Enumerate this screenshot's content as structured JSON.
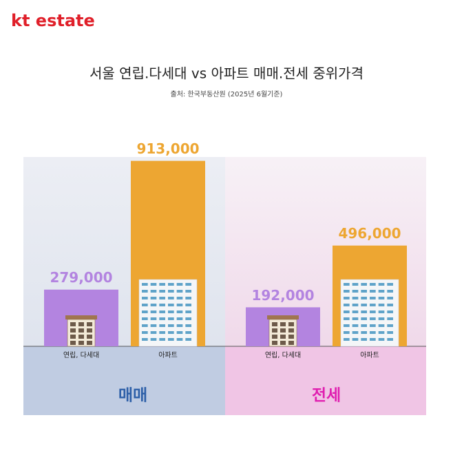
{
  "header": {
    "brand": "kt estate",
    "title": "서울 연립.다세대 vs 아파트 매매.전세 중위가격",
    "source": "출처: 한국부동산원 (2025년 6월기준)"
  },
  "chart_data": [
    {
      "type": "bar",
      "panel_label": "매매",
      "categories": [
        "연립, 다세대",
        "아파트"
      ],
      "values": [
        279000,
        913000
      ],
      "value_labels": [
        "279,000",
        "913,000"
      ],
      "colors": [
        "#b384e0",
        "#eda632"
      ],
      "ylim": [
        0,
        1000000
      ]
    },
    {
      "type": "bar",
      "panel_label": "전세",
      "categories": [
        "연립, 다세대",
        "아파트"
      ],
      "values": [
        192000,
        496000
      ],
      "value_labels": [
        "192,000",
        "496,000"
      ],
      "colors": [
        "#b384e0",
        "#eda632"
      ],
      "ylim": [
        0,
        1000000
      ]
    }
  ]
}
